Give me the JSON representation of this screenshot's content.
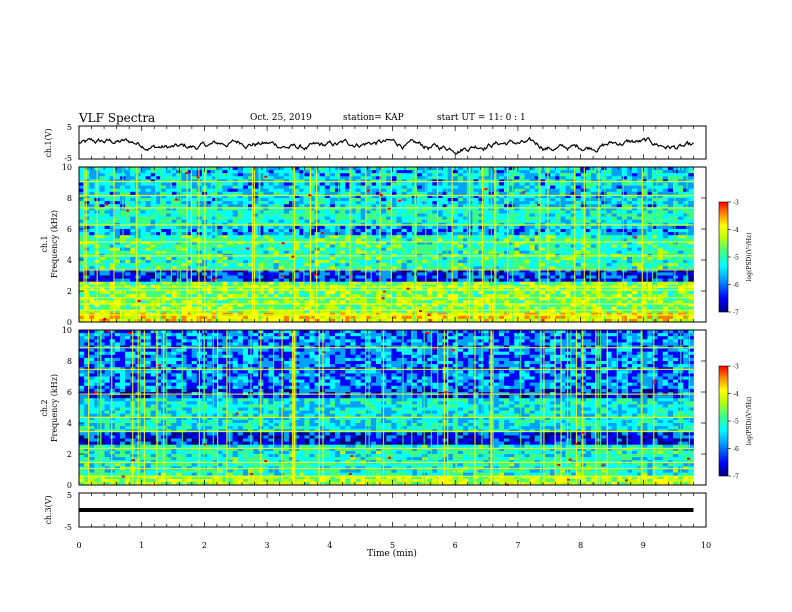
{
  "header": {
    "title": "VLF Spectra",
    "date": "Oct. 25, 2019",
    "station": "station= KAP",
    "start_ut": "start  UT =   11: 0  : 1"
  },
  "chart_data": [
    {
      "type": "line",
      "panel": "ch1-waveform",
      "ylabel": "ch.1(V)",
      "ylim": [
        -5,
        5
      ],
      "y_ticks": [
        "5",
        "-5"
      ],
      "x_range": [
        0,
        10
      ],
      "description_values": {
        "approx_min": -4,
        "approx_max": 2
      }
    },
    {
      "type": "heatmap",
      "panel": "ch1-spectrogram",
      "ylabel_lines": [
        "ch.1",
        "Frequency  (kHz)"
      ],
      "ylim": [
        0,
        10
      ],
      "y_ticks": [
        "0",
        "2",
        "4",
        "6",
        "8",
        "10"
      ],
      "x_range": [
        0,
        9.8
      ],
      "colorbar": {
        "label": "log(PSD)(V²/Hz)",
        "range": [
          -7,
          -3
        ],
        "ticks": [
          "-3",
          "-4",
          "-5",
          "-6",
          "-7"
        ]
      }
    },
    {
      "type": "heatmap",
      "panel": "ch2-spectrogram",
      "ylabel_lines": [
        "ch.2",
        "Frequency  (kHz)"
      ],
      "ylim": [
        0,
        10
      ],
      "y_ticks": [
        "0",
        "2",
        "4",
        "6",
        "8",
        "10"
      ],
      "x_range": [
        0,
        9.8
      ],
      "colorbar": {
        "label": "log(PSD)(V²/Hz)",
        "range": [
          -7,
          -3
        ],
        "ticks": [
          "-3",
          "-4",
          "-5",
          "-6",
          "-7"
        ]
      }
    },
    {
      "type": "line",
      "panel": "ch3-waveform",
      "ylabel": "ch.3(V)",
      "ylim": [
        -5,
        5
      ],
      "y_ticks": [
        "5",
        "-5"
      ],
      "series": [
        {
          "x": [
            0,
            9.8
          ],
          "y": [
            0,
            0
          ]
        }
      ]
    }
  ],
  "x_axis": {
    "label": "Time  (min)",
    "range": [
      0,
      10
    ],
    "ticks": [
      "0",
      "1",
      "2",
      "3",
      "4",
      "5",
      "6",
      "7",
      "8",
      "9",
      "10"
    ]
  },
  "colorscale": [
    "#000080",
    "#0000ff",
    "#00a0ff",
    "#00ffff",
    "#40ff80",
    "#c0ff00",
    "#ffff00",
    "#ff8000",
    "#ff0000"
  ]
}
